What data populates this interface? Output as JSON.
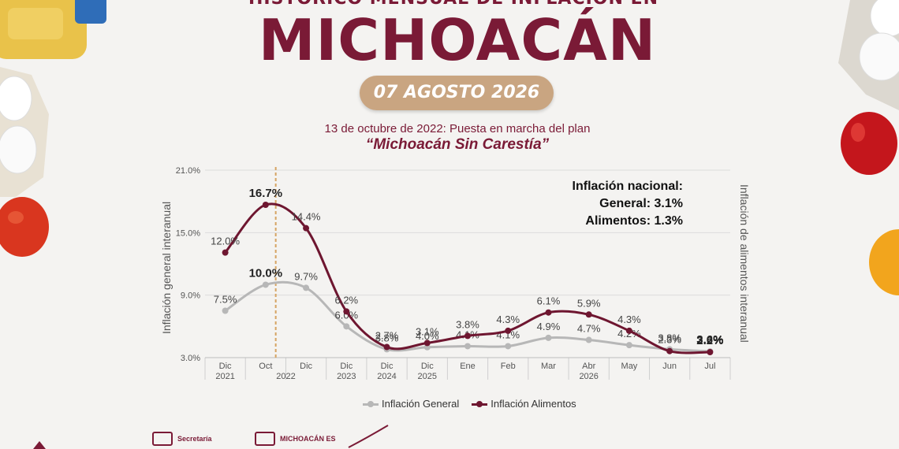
{
  "header": {
    "partial_title": "HISTÓRICO MENSUAL DE INFLACIÓN EN",
    "title": "MICHOACÁN",
    "date": "07 AGOSTO 2026",
    "plan_note": "13 de octubre de 2022: Puesta en marcha del plan",
    "plan_name": "“Michoacán Sin Carestía”"
  },
  "national": {
    "heading": "Inflación nacional:",
    "general": "General: 3.1%",
    "food": "Alimentos: 1.3%"
  },
  "footer": {
    "logo1": "Secretaría",
    "logo2": "MICHOACÁN ES"
  },
  "colors": {
    "general": "#b7b7b7",
    "food": "#6e1630",
    "accent": "#7a1a36",
    "marker": "#d6a463"
  },
  "chart_data": {
    "type": "line",
    "categories": [
      "Dic 2021",
      "Oct 2022",
      "Dic 2022",
      "Dic 2023",
      "Dic 2024",
      "Dic 2025",
      "Ene 2026",
      "Feb 2026",
      "Mar 2026",
      "Abr 2026",
      "May 2026",
      "Jun 2026",
      "Jul 2026"
    ],
    "tick_labels": [
      [
        "Dic",
        "2021"
      ],
      [
        "Oct",
        ""
      ],
      [
        "Dic",
        ""
      ],
      [
        "Dic",
        "2023"
      ],
      [
        "Dic",
        "2024"
      ],
      [
        "Dic",
        "2025"
      ],
      [
        "Ene",
        ""
      ],
      [
        "Feb",
        ""
      ],
      [
        "Mar",
        ""
      ],
      [
        "Abr",
        "2026"
      ],
      [
        "May",
        ""
      ],
      [
        "Jun",
        ""
      ],
      [
        "Jul",
        ""
      ]
    ],
    "group_labels": [
      {
        "text": "2022",
        "from": 1,
        "to": 2
      }
    ],
    "series": [
      {
        "name": "Inflación General",
        "axis": "left",
        "values": [
          7.5,
          10.0,
          9.7,
          6.0,
          3.8,
          4.0,
          4.1,
          4.1,
          4.9,
          4.7,
          4.2,
          3.8,
          3.6
        ],
        "labels": [
          "7.5%",
          "10.0%",
          "9.7%",
          "6.0%",
          "3.8%",
          "4.0%",
          "4.1%",
          "4.1%",
          "4.9%",
          "4.7%",
          "4.2%",
          "3.8%",
          "3.6%"
        ]
      },
      {
        "name": "Inflación Alimentos",
        "axis": "right",
        "values": [
          12.0,
          16.7,
          14.4,
          6.2,
          2.7,
          3.1,
          3.8,
          4.3,
          6.1,
          5.9,
          4.3,
          2.3,
          2.2
        ],
        "labels": [
          "12.0%",
          "16.7%",
          "14.4%",
          "6.2%",
          "2.7%",
          "3.1%",
          "3.8%",
          "4.3%",
          "6.1%",
          "5.9%",
          "4.3%",
          "2.3%",
          "2.2%"
        ]
      }
    ],
    "left_axis": {
      "label": "Inflación general interanual",
      "ticks": [
        "3.0%",
        "9.0%",
        "15.0%",
        "21.0%"
      ],
      "ylim": [
        3,
        21
      ]
    },
    "right_axis": {
      "label": "Inflación de alimentos interanual"
    },
    "legend": [
      "Inflación General",
      "Inflación Alimentos"
    ],
    "legend_position": "bottom"
  }
}
